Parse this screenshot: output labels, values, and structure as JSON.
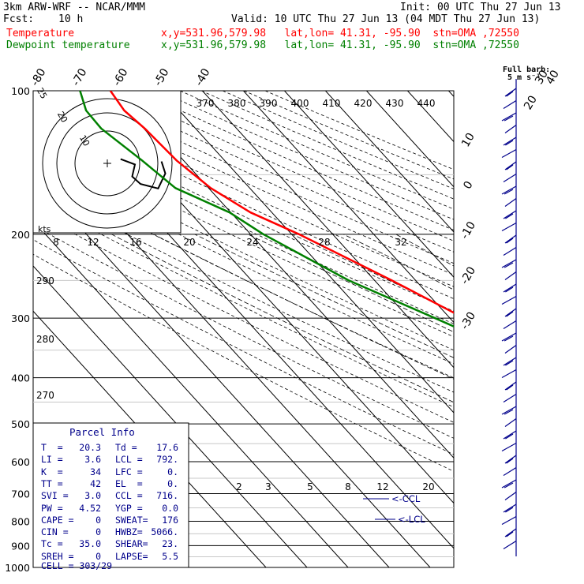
{
  "header": {
    "model": "3km ARW-WRF -- NCAR/MMM",
    "init": "Init: 00 UTC Thu 27 Jun 13",
    "fcst_label": "Fcst:",
    "fcst_value": "10 h",
    "valid": "Valid: 10 UTC Thu 27 Jun 13 (04 MDT Thu 27 Jun 13)",
    "temp_label": "Temperature",
    "temp_loc": "x,y=531.96,579.98   lat,lon= 41.31, -95.90  stn=OMA ,72550",
    "dew_label": "Dewpoint temperature",
    "dew_loc": "x,y=531.96,579.98   lat,lon= 41.31, -95.90  stn=OMA ,72550",
    "full_barb": "Full barb:",
    "full_barb_unit": "5 m s⁻¹"
  },
  "parcel_info": {
    "title": "Parcel Info",
    "rows": [
      [
        "T  =",
        "20.3",
        "Td =",
        "17.6"
      ],
      [
        "LI =",
        "3.6",
        "LCL =",
        "792."
      ],
      [
        "K  =",
        "34",
        "LFC =",
        "0."
      ],
      [
        "TT =",
        "42",
        "EL  =",
        "0."
      ],
      [
        "SVI =",
        "3.0",
        "CCL =",
        "716."
      ],
      [
        "PW =",
        "4.52",
        "YGP =",
        "0.0"
      ],
      [
        "CAPE =",
        "0",
        "SWEAT=",
        "176"
      ],
      [
        "CIN =",
        "0",
        "HWBZ=",
        "5066."
      ],
      [
        "Tc =",
        "35.0",
        "SHEAR=",
        "23."
      ],
      [
        "SREH =",
        "0",
        "LAPSE=",
        "5.5"
      ]
    ],
    "cell": "CELL = 303/29"
  },
  "chart_data": {
    "type": "line",
    "title": "Skew-T log-P sounding",
    "pressure_levels": [
      100,
      200,
      300,
      400,
      500,
      600,
      700,
      800,
      900,
      1000
    ],
    "isotherm_labels": [
      -80,
      -70,
      -60,
      -50,
      -40,
      -30,
      -20,
      -10,
      0,
      10,
      20,
      30,
      40
    ],
    "theta_e_labels": [
      370,
      380,
      390,
      400,
      410,
      420,
      430,
      440
    ],
    "mixing_ratio_labels": [
      2,
      3,
      5,
      8,
      12,
      20
    ],
    "theta_labels_left": [
      290,
      280,
      270
    ],
    "hodograph_speed_labels": [
      8,
      12,
      16,
      20,
      24,
      28,
      32
    ],
    "hodograph_rings": [
      10,
      20,
      25
    ],
    "hodograph_unit": "kts",
    "ccl_label": "<-CCL",
    "lcl_label": "<-LCL",
    "series": [
      {
        "name": "Temperature",
        "color": "#ff0000",
        "points": [
          {
            "p": 960,
            "t": 20.3
          },
          {
            "p": 940,
            "t": 22.5
          },
          {
            "p": 925,
            "t": 24.6
          },
          {
            "p": 900,
            "t": 22.6
          },
          {
            "p": 850,
            "t": 18.2
          },
          {
            "p": 800,
            "t": 15.7
          },
          {
            "p": 750,
            "t": 12.8
          },
          {
            "p": 700,
            "t": 9.9
          },
          {
            "p": 650,
            "t": 7.3
          },
          {
            "p": 600,
            "t": 4.3
          },
          {
            "p": 550,
            "t": 0.8
          },
          {
            "p": 500,
            "t": -2.6
          },
          {
            "p": 450,
            "t": -7.2
          },
          {
            "p": 400,
            "t": -13.2
          },
          {
            "p": 350,
            "t": -19.6
          },
          {
            "p": 300,
            "t": -26.5
          },
          {
            "p": 250,
            "t": -35.8
          },
          {
            "p": 200,
            "t": -48.2
          },
          {
            "p": 180,
            "t": -55.2
          },
          {
            "p": 160,
            "t": -59.5
          },
          {
            "p": 140,
            "t": -61.7
          },
          {
            "p": 120,
            "t": -62.4
          },
          {
            "p": 110,
            "t": -63.4
          },
          {
            "p": 100,
            "t": -62.4
          }
        ]
      },
      {
        "name": "Dewpoint temperature",
        "color": "#008000",
        "points": [
          {
            "p": 960,
            "t": 17.6
          },
          {
            "p": 940,
            "t": 16.0
          },
          {
            "p": 925,
            "t": 12.0
          },
          {
            "p": 900,
            "t": 11.4
          },
          {
            "p": 850,
            "t": 11.0
          },
          {
            "p": 800,
            "t": 9.6
          },
          {
            "p": 750,
            "t": 8.0
          },
          {
            "p": 700,
            "t": 5.6
          },
          {
            "p": 650,
            "t": 4.4
          },
          {
            "p": 600,
            "t": 2.8
          },
          {
            "p": 550,
            "t": -0.3
          },
          {
            "p": 500,
            "t": -3.5
          },
          {
            "p": 450,
            "t": -8.4
          },
          {
            "p": 400,
            "t": -14.7
          },
          {
            "p": 350,
            "t": -23.0
          },
          {
            "p": 300,
            "t": -33.6
          },
          {
            "p": 250,
            "t": -46.3
          },
          {
            "p": 200,
            "t": -56.9
          },
          {
            "p": 180,
            "t": -60.3
          },
          {
            "p": 160,
            "t": -68.1
          },
          {
            "p": 140,
            "t": -70.1
          },
          {
            "p": 120,
            "t": -73.0
          },
          {
            "p": 110,
            "t": -72.7
          },
          {
            "p": 100,
            "t": -69.8
          }
        ]
      }
    ],
    "hodograph": [
      [
        0.24,
        0.12
      ],
      [
        0.5,
        0.3
      ],
      [
        0.45,
        0.7
      ],
      [
        0.6,
        0.95
      ],
      [
        0.92,
        1.1
      ],
      [
        1.05,
        0.6
      ],
      [
        0.98,
        0.2
      ]
    ],
    "wind_barbs_count": 38,
    "colors": {
      "temperature": "#ff0000",
      "dewpoint": "#008000",
      "grid": "#000000",
      "info_text": "#00008b",
      "barbs": "#00008b"
    }
  }
}
